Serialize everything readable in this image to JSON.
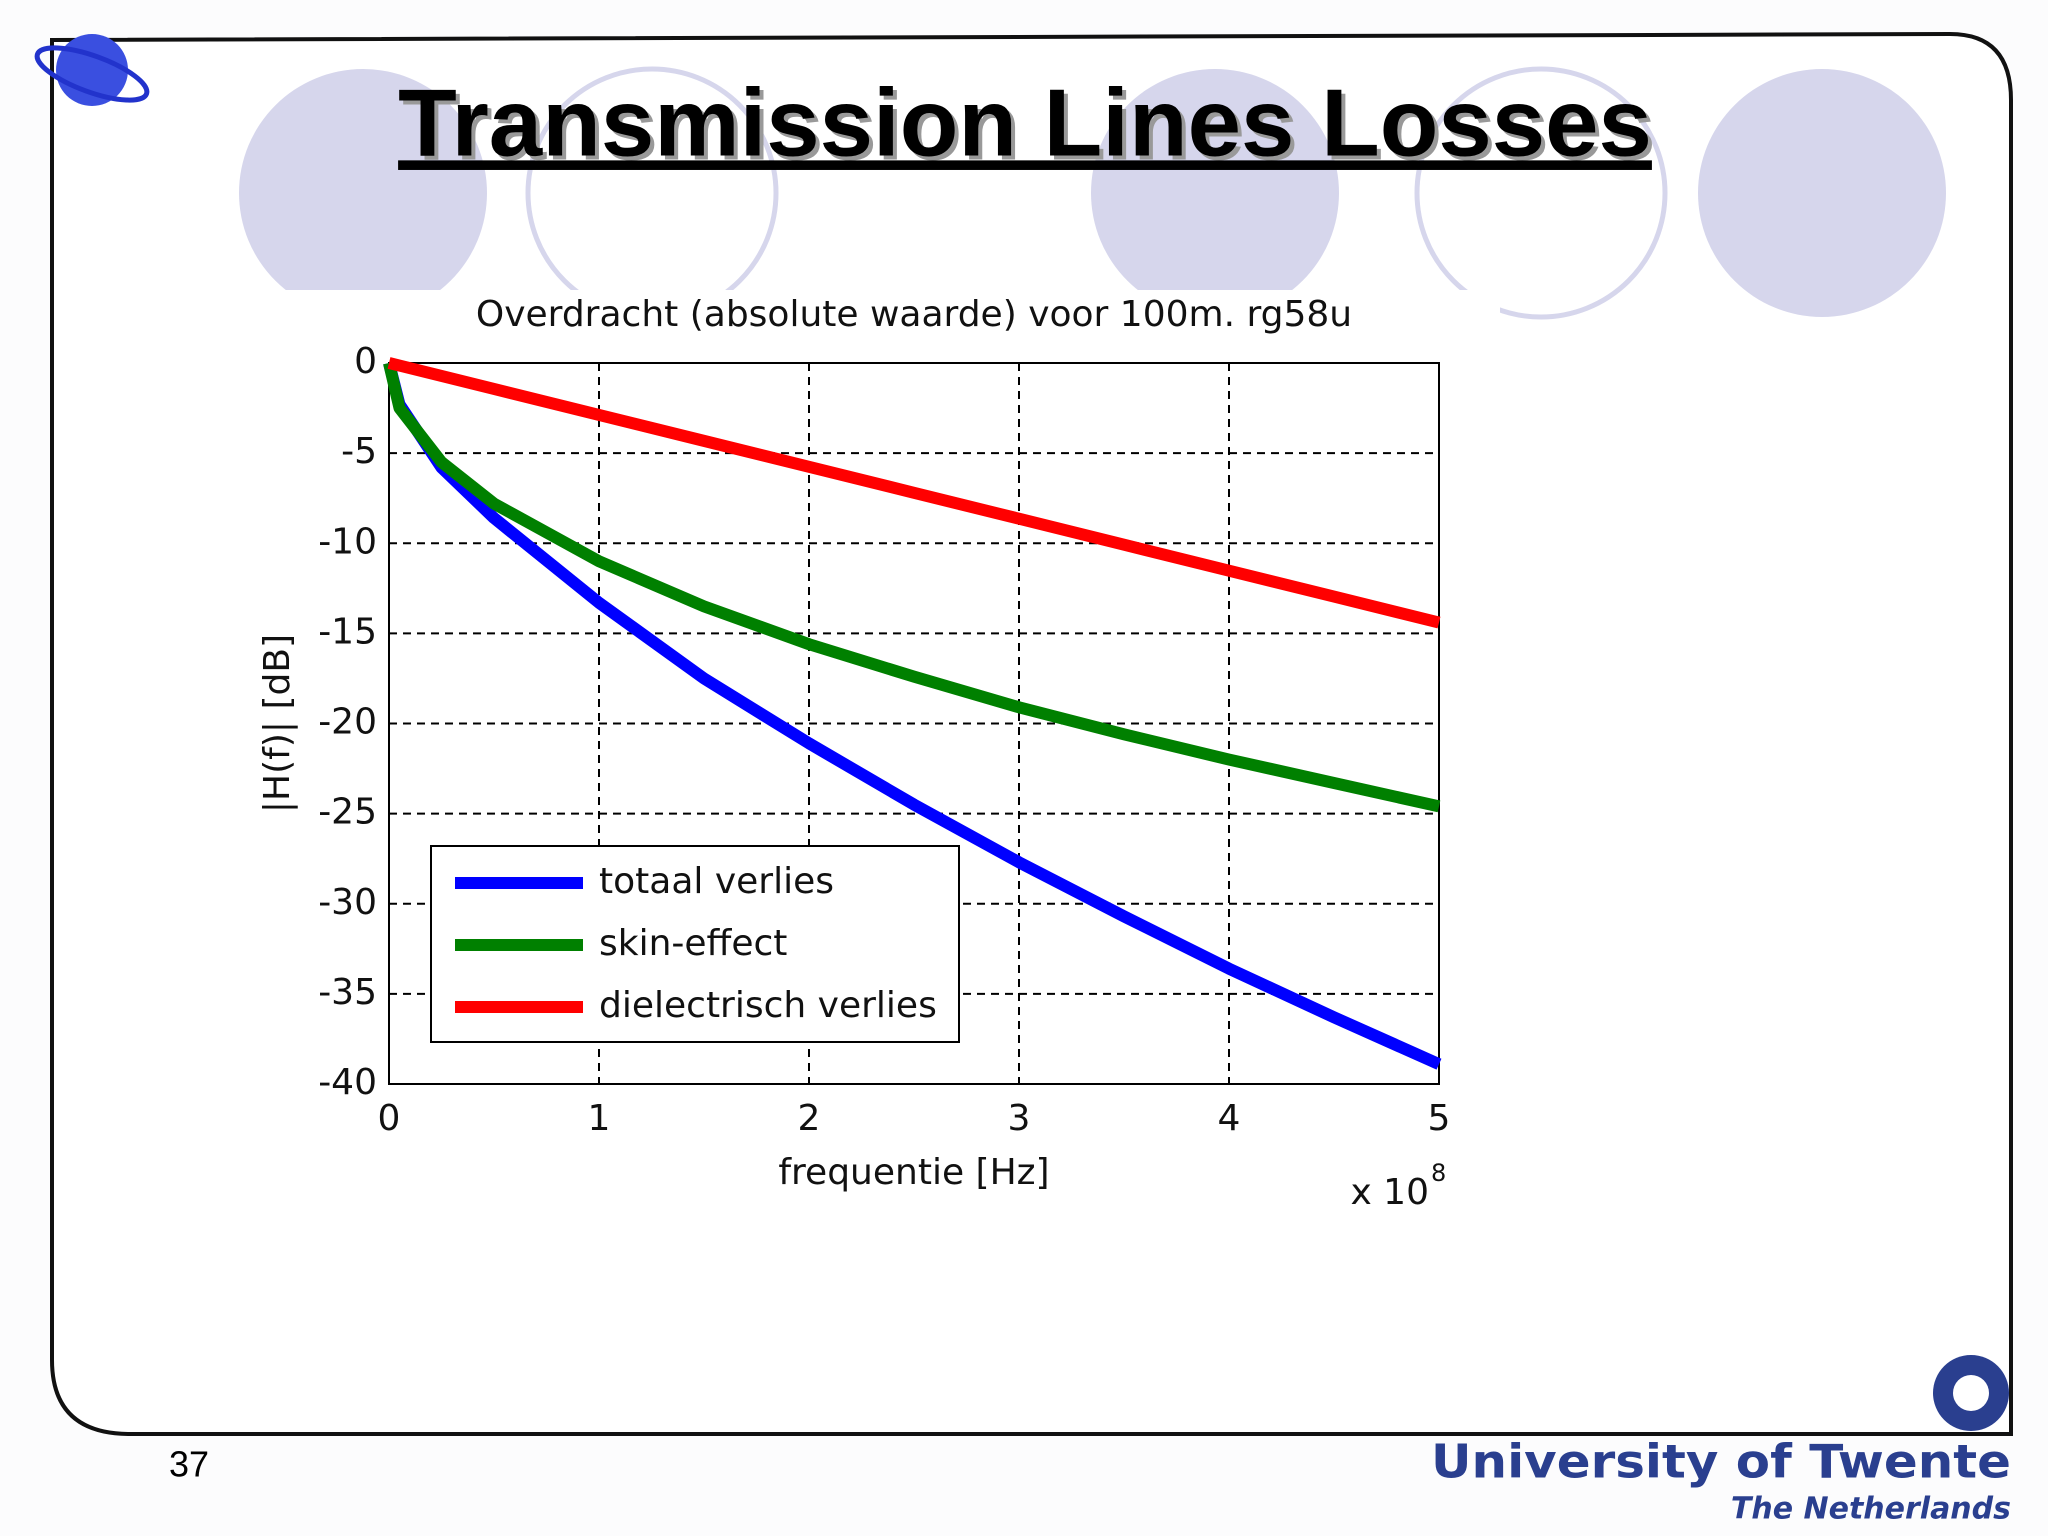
{
  "slide": {
    "title": "Transmission Lines Losses",
    "page_number": 37,
    "footer": {
      "university": "University of Twente",
      "country": "The Netherlands"
    }
  },
  "chart_data": {
    "type": "line",
    "title": "Overdracht (absolute waarde) voor 100m. rg58u",
    "x_label": "frequentie [Hz]",
    "y_label": "|H(f)| [dB]",
    "x_multiplier": {
      "base": "x 10",
      "exponent": "8"
    },
    "x": [
      0,
      0.05,
      0.25,
      0.5,
      1,
      1.5,
      2,
      2.5,
      3,
      3.5,
      4,
      4.5,
      5
    ],
    "series": [
      {
        "name": "totaal verlies",
        "color": "#0000ff",
        "values": [
          0,
          -2.3,
          -5.8,
          -8.6,
          -13.3,
          -17.5,
          -21.1,
          -24.5,
          -27.7,
          -30.7,
          -33.6,
          -36.3,
          -38.9
        ]
      },
      {
        "name": "skin-effect",
        "color": "#008000",
        "values": [
          0,
          -2.5,
          -5.5,
          -7.8,
          -11,
          -13.5,
          -15.6,
          -17.4,
          -19.1,
          -20.6,
          -22,
          -23.3,
          -24.6
        ]
      },
      {
        "name": "dielectrisch verlies",
        "color": "#ff0000",
        "values": [
          0,
          -0.14,
          -0.72,
          -1.44,
          -2.88,
          -4.32,
          -5.76,
          -7.2,
          -8.64,
          -10.08,
          -11.52,
          -12.96,
          -14.4
        ]
      }
    ],
    "xlim": [
      0,
      5
    ],
    "xticks": [
      0,
      1,
      2,
      3,
      4,
      5
    ],
    "ylim": [
      -40,
      0
    ],
    "yticks": [
      -40,
      -35,
      -30,
      -25,
      -20,
      -15,
      -10,
      -5,
      0
    ],
    "grid": true,
    "legend": "lower left"
  }
}
